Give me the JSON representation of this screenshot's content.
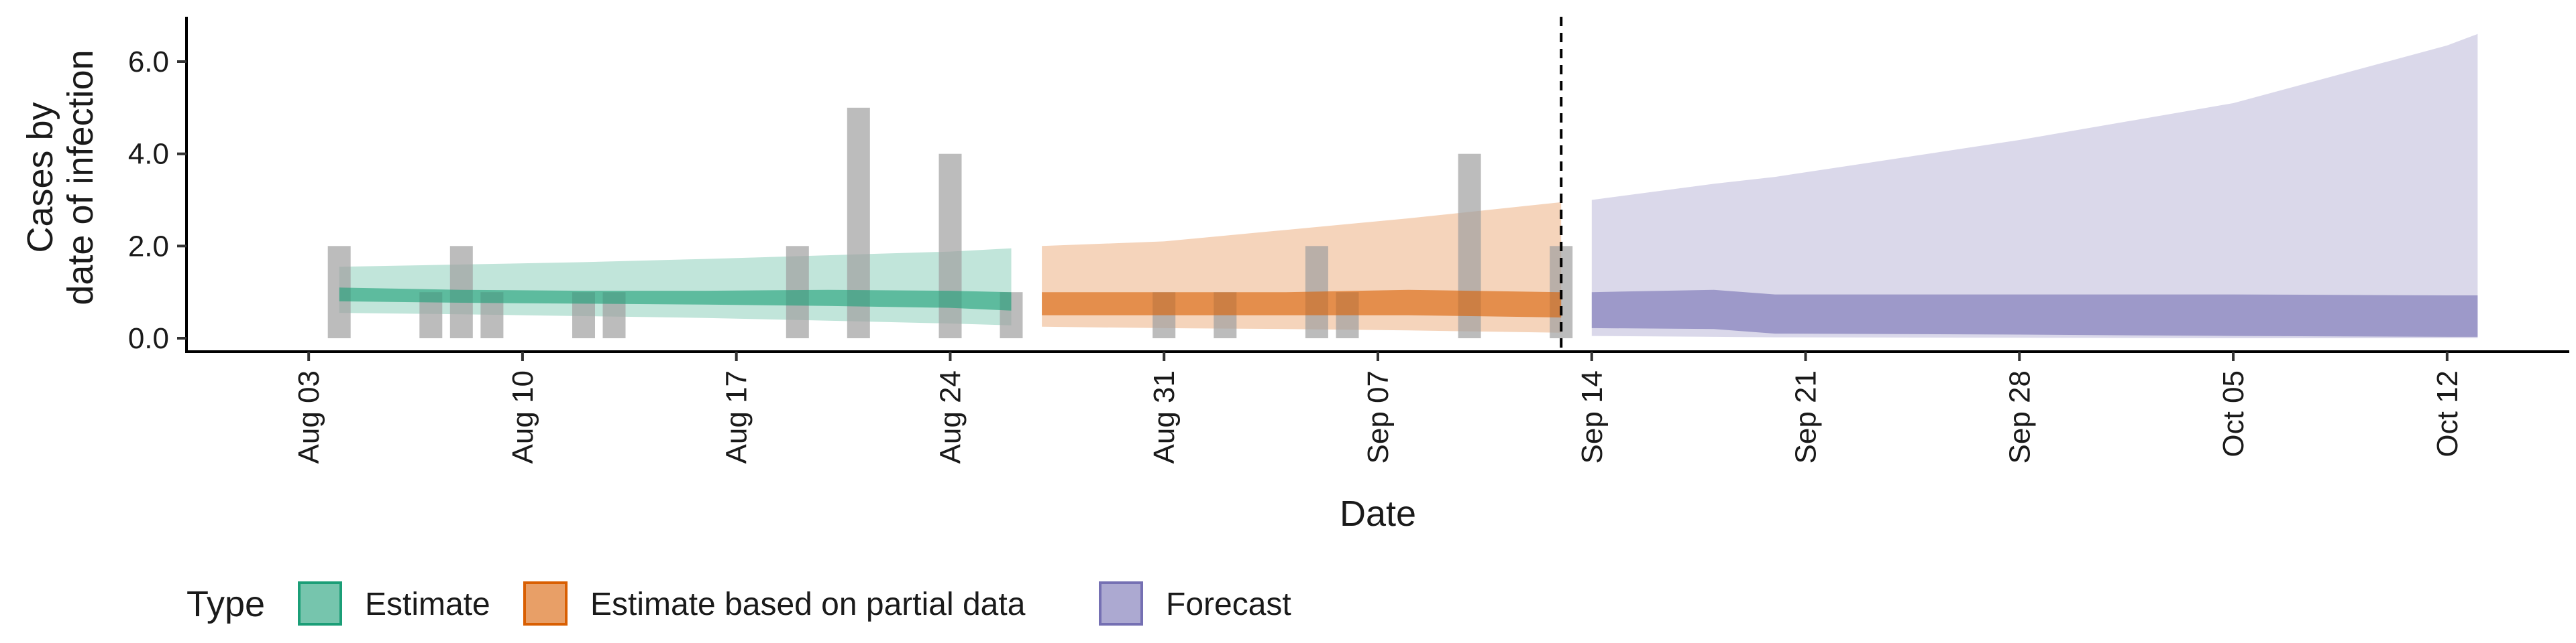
{
  "chart_data": {
    "type": "area",
    "xlabel": "Date",
    "ylabel": [
      "Cases by",
      "date of infection"
    ],
    "ylim": [
      0,
      6.6
    ],
    "xlim": [
      "2020-07-30",
      "2020-10-16"
    ],
    "y_ticks": [
      {
        "value": 0,
        "label": "0.0"
      },
      {
        "value": 2,
        "label": "2.0"
      },
      {
        "value": 4,
        "label": "4.0"
      },
      {
        "value": 6,
        "label": "6.0"
      }
    ],
    "x_ticks": [
      {
        "date": "2020-08-03",
        "label": "Aug 03"
      },
      {
        "date": "2020-08-10",
        "label": "Aug 10"
      },
      {
        "date": "2020-08-17",
        "label": "Aug 17"
      },
      {
        "date": "2020-08-24",
        "label": "Aug 24"
      },
      {
        "date": "2020-08-31",
        "label": "Aug 31"
      },
      {
        "date": "2020-09-07",
        "label": "Sep 07"
      },
      {
        "date": "2020-09-14",
        "label": "Sep 14"
      },
      {
        "date": "2020-09-21",
        "label": "Sep 21"
      },
      {
        "date": "2020-09-28",
        "label": "Sep 28"
      },
      {
        "date": "2020-10-05",
        "label": "Oct 05"
      },
      {
        "date": "2020-10-12",
        "label": "Oct 12"
      }
    ],
    "grid": false,
    "forecast_start_line": "2020-09-13",
    "legend": {
      "title": "Type",
      "position": "bottom",
      "entries": [
        {
          "label": "Estimate",
          "fill": "#1b9e77",
          "border": "#1b9e77"
        },
        {
          "label": "Estimate based on partial data",
          "fill": "#d95f02",
          "border": "#d95f02"
        },
        {
          "label": "Forecast",
          "fill": "#7570b3",
          "border": "#7570b3"
        }
      ]
    },
    "observed_cases": {
      "color": "#a0a0a0",
      "bars": [
        {
          "date": "2020-08-04",
          "value": 2
        },
        {
          "date": "2020-08-07",
          "value": 1
        },
        {
          "date": "2020-08-08",
          "value": 2
        },
        {
          "date": "2020-08-09",
          "value": 1
        },
        {
          "date": "2020-08-12",
          "value": 1
        },
        {
          "date": "2020-08-13",
          "value": 1
        },
        {
          "date": "2020-08-19",
          "value": 2
        },
        {
          "date": "2020-08-21",
          "value": 5
        },
        {
          "date": "2020-08-24",
          "value": 4
        },
        {
          "date": "2020-08-26",
          "value": 1
        },
        {
          "date": "2020-08-31",
          "value": 1
        },
        {
          "date": "2020-09-02",
          "value": 1
        },
        {
          "date": "2020-09-05",
          "value": 2
        },
        {
          "date": "2020-09-06",
          "value": 1
        },
        {
          "date": "2020-09-10",
          "value": 4
        },
        {
          "date": "2020-09-13",
          "value": 2
        }
      ]
    },
    "series": [
      {
        "name": "Estimate",
        "color": "#1b9e77",
        "points": [
          {
            "date": "2020-08-04",
            "outer_low": 0.55,
            "outer_high": 1.55,
            "inner_low": 0.8,
            "inner_high": 1.1
          },
          {
            "date": "2020-08-08",
            "outer_low": 0.52,
            "outer_high": 1.6,
            "inner_low": 0.77,
            "inner_high": 1.05
          },
          {
            "date": "2020-08-12",
            "outer_low": 0.48,
            "outer_high": 1.65,
            "inner_low": 0.75,
            "inner_high": 1.03
          },
          {
            "date": "2020-08-16",
            "outer_low": 0.44,
            "outer_high": 1.72,
            "inner_low": 0.73,
            "inner_high": 1.03
          },
          {
            "date": "2020-08-20",
            "outer_low": 0.38,
            "outer_high": 1.8,
            "inner_low": 0.7,
            "inner_high": 1.05
          },
          {
            "date": "2020-08-24",
            "outer_low": 0.32,
            "outer_high": 1.88,
            "inner_low": 0.66,
            "inner_high": 1.03
          },
          {
            "date": "2020-08-26",
            "outer_low": 0.28,
            "outer_high": 1.95,
            "inner_low": 0.6,
            "inner_high": 1.0
          }
        ]
      },
      {
        "name": "Estimate based on partial data",
        "color": "#d95f02",
        "points": [
          {
            "date": "2020-08-27",
            "outer_low": 0.25,
            "outer_high": 2.0,
            "inner_low": 0.5,
            "inner_high": 1.0
          },
          {
            "date": "2020-08-31",
            "outer_low": 0.22,
            "outer_high": 2.1,
            "inner_low": 0.5,
            "inner_high": 1.0
          },
          {
            "date": "2020-09-04",
            "outer_low": 0.2,
            "outer_high": 2.35,
            "inner_low": 0.5,
            "inner_high": 1.0
          },
          {
            "date": "2020-09-08",
            "outer_low": 0.17,
            "outer_high": 2.6,
            "inner_low": 0.5,
            "inner_high": 1.05
          },
          {
            "date": "2020-09-13",
            "outer_low": 0.12,
            "outer_high": 2.95,
            "inner_low": 0.45,
            "inner_high": 1.0
          }
        ]
      },
      {
        "name": "Forecast",
        "color": "#7570b3",
        "points": [
          {
            "date": "2020-09-14",
            "outer_low": 0.05,
            "outer_high": 3.0,
            "inner_low": 0.22,
            "inner_high": 1.0
          },
          {
            "date": "2020-09-18",
            "outer_low": 0.03,
            "outer_high": 3.35,
            "inner_low": 0.2,
            "inner_high": 1.05
          },
          {
            "date": "2020-09-20",
            "outer_low": 0.02,
            "outer_high": 3.5,
            "inner_low": 0.1,
            "inner_high": 0.95
          },
          {
            "date": "2020-09-28",
            "outer_low": 0.01,
            "outer_high": 4.3,
            "inner_low": 0.08,
            "inner_high": 0.95
          },
          {
            "date": "2020-10-05",
            "outer_low": 0.0,
            "outer_high": 5.1,
            "inner_low": 0.05,
            "inner_high": 0.95
          },
          {
            "date": "2020-10-12",
            "outer_low": 0.0,
            "outer_high": 6.35,
            "inner_low": 0.03,
            "inner_high": 0.93
          },
          {
            "date": "2020-10-13",
            "outer_low": 0.0,
            "outer_high": 6.6,
            "inner_low": 0.03,
            "inner_high": 0.93
          }
        ]
      }
    ]
  }
}
